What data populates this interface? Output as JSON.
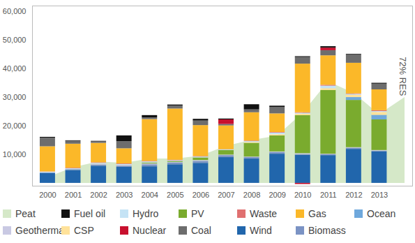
{
  "chart_data": {
    "type": "bar",
    "stacked": true,
    "grid": false,
    "legend": "bottom",
    "annotations": [
      "72% RES"
    ],
    "categories": [
      "2000",
      "2001",
      "2002",
      "2003",
      "2004",
      "2005",
      "2006",
      "2007",
      "2008",
      "2009",
      "2010",
      "2011",
      "2012",
      "2013",
      null
    ],
    "ylim": [
      -1000,
      62000
    ],
    "yticks": [
      10000,
      20000,
      30000,
      40000,
      50000,
      60000
    ],
    "series": [
      {
        "name": "Wind",
        "color": "#2166ac",
        "values": [
          3500,
          4500,
          6000,
          5600,
          5800,
          6500,
          7000,
          9000,
          8500,
          10200,
          9800,
          9700,
          11900,
          11000,
          null
        ]
      },
      {
        "name": "Biomass",
        "color": "#7b93c4",
        "values": [
          200,
          300,
          400,
          400,
          700,
          600,
          700,
          700,
          500,
          600,
          300,
          300,
          400,
          300,
          null
        ]
      },
      {
        "name": "Geothermal",
        "color": "#c9c9e3",
        "values": [
          0,
          0,
          300,
          300,
          300,
          200,
          300,
          200,
          200,
          200,
          300,
          200,
          200,
          200,
          null
        ]
      },
      {
        "name": "PV",
        "color": "#7aab2e",
        "values": [
          0,
          0,
          0,
          0,
          300,
          300,
          900,
          1600,
          4800,
          5600,
          13300,
          22300,
          16500,
          10700,
          null
        ]
      },
      {
        "name": "Ocean",
        "color": "#6fa8dc",
        "values": [
          0,
          0,
          0,
          0,
          0,
          0,
          0,
          0,
          0,
          0,
          0,
          0,
          1000,
          1600,
          null
        ]
      },
      {
        "name": "CSP",
        "color": "#ffe29a",
        "values": [
          0,
          0,
          0,
          0,
          0,
          0,
          0,
          0,
          300,
          400,
          500,
          600,
          800,
          1000,
          null
        ]
      },
      {
        "name": "Hydro",
        "color": "#c5e3f5",
        "values": [
          200,
          300,
          300,
          300,
          400,
          300,
          300,
          200,
          300,
          600,
          300,
          900,
          300,
          300,
          null
        ]
      },
      {
        "name": "Waste",
        "color": "#e07070",
        "values": [
          100,
          200,
          200,
          200,
          200,
          200,
          200,
          100,
          200,
          200,
          200,
          300,
          200,
          300,
          null
        ]
      },
      {
        "name": "Gas",
        "color": "#fbb829",
        "values": [
          8800,
          8400,
          6800,
          5300,
          14600,
          17900,
          10800,
          8300,
          9900,
          6500,
          17000,
          10300,
          10700,
          7300,
          null
        ]
      },
      {
        "name": "Coal",
        "color": "#6d6d6d",
        "values": [
          3000,
          1000,
          500,
          2500,
          600,
          1000,
          1600,
          500,
          1000,
          2200,
          2300,
          1800,
          2800,
          2000,
          null
        ]
      },
      {
        "name": "Nuclear",
        "color": "#c8102e",
        "values": [
          0,
          0,
          0,
          0,
          0,
          0,
          0,
          1600,
          0,
          0,
          -400,
          900,
          0,
          0,
          null
        ]
      },
      {
        "name": "Fuel oil",
        "color": "#111111",
        "values": [
          300,
          200,
          200,
          2000,
          800,
          400,
          600,
          300,
          1800,
          500,
          300,
          500,
          300,
          300,
          null
        ]
      },
      {
        "name": "Peat",
        "type": "area",
        "color": "#d5e8c8",
        "values": [
          2000,
          5500,
          7500,
          7000,
          8500,
          8500,
          9500,
          13000,
          15000,
          16500,
          24500,
          35500,
          31500,
          24000,
          30000
        ]
      }
    ]
  }
}
